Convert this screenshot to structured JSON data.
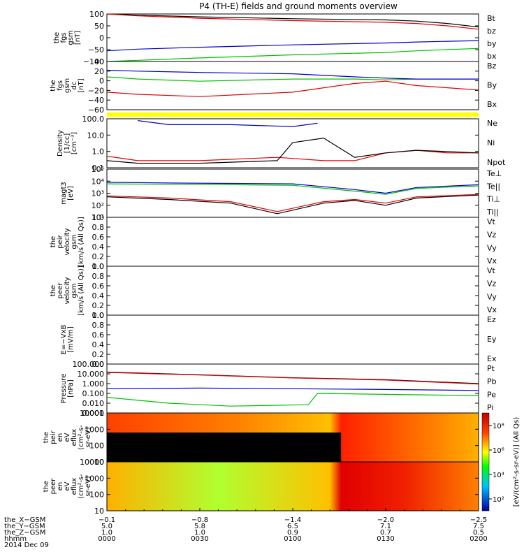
{
  "title": "P4 (TH-E) fields and ground moments overview",
  "date_label": "2014 Dec 09",
  "colors": {
    "black": "#000000",
    "red": "#e00000",
    "green": "#00c000",
    "blue": "#0000d0",
    "yellow": "#ffff00"
  },
  "panels": [
    {
      "id": "fgs-gsm",
      "ylabel": [
        "the",
        "fgs",
        "gsm",
        "[nT]"
      ],
      "yticks": [
        "100",
        "50",
        "0",
        "−50",
        "−100"
      ],
      "legend": [
        {
          "t": "Bt",
          "c": "black"
        },
        {
          "t": "bz",
          "c": "red"
        },
        {
          "t": "by",
          "c": "green"
        },
        {
          "t": "bx",
          "c": "blue"
        }
      ]
    },
    {
      "id": "fgs-gsm-dc",
      "ylabel": [
        "the",
        "fgs",
        "gsm",
        "dc",
        "[nT]"
      ],
      "yticks": [
        "40",
        "20",
        "0",
        "−20",
        "−40",
        "−60"
      ],
      "legend": [
        {
          "t": "Bz",
          "c": "red"
        },
        {
          "t": "By",
          "c": "green"
        },
        {
          "t": "Bx",
          "c": "blue"
        }
      ]
    },
    {
      "id": "density",
      "ylabel": [
        "Density",
        "[1/cc]",
        "[cm⁻³]"
      ],
      "yticks": [
        "100.0",
        "10.0",
        "1.0",
        "0.1"
      ],
      "legend": [
        {
          "t": "Ne",
          "c": "red"
        },
        {
          "t": "Ni",
          "c": "black"
        },
        {
          "t": "Npot",
          "c": "blue"
        }
      ]
    },
    {
      "id": "temperature",
      "ylabel": [
        "magt3",
        "[eV]"
      ],
      "yticks": [
        "10⁵",
        "10⁴",
        "10³",
        "10²",
        "10¹"
      ],
      "legend": [
        {
          "t": "Te⊥",
          "c": "red"
        },
        {
          "t": "Te||",
          "c": "black"
        },
        {
          "t": "Ti⊥",
          "c": "blue"
        },
        {
          "t": "Ti||",
          "c": "green"
        }
      ]
    },
    {
      "id": "peir-velocity",
      "ylabel": [
        "the",
        "peir",
        "velocity",
        "gsm",
        "[km/s (All Qs)]"
      ],
      "yticks": [
        "1.0",
        "0.8",
        "0.6",
        "0.4",
        "0.2",
        "0.0"
      ],
      "legend": [
        {
          "t": "Vt",
          "c": "black"
        },
        {
          "t": "Vz",
          "c": "red"
        },
        {
          "t": "Vy",
          "c": "green"
        },
        {
          "t": "Vx",
          "c": "blue"
        }
      ]
    },
    {
      "id": "peer-velocity",
      "ylabel": [
        "the",
        "peer",
        "velocity",
        "gsm",
        "[km/s (All Qs)]"
      ],
      "yticks": [
        "1.0",
        "0.8",
        "0.6",
        "0.4",
        "0.2",
        "0.0"
      ],
      "legend": [
        {
          "t": "Vt",
          "c": "black"
        },
        {
          "t": "Vz",
          "c": "red"
        },
        {
          "t": "Vy",
          "c": "green"
        },
        {
          "t": "Vx",
          "c": "blue"
        }
      ]
    },
    {
      "id": "e-field",
      "ylabel": [
        "E=−VxB",
        "[mV/m]"
      ],
      "yticks": [
        "1.0",
        "0.8",
        "0.6",
        "0.4",
        "0.2",
        "0.0"
      ],
      "legend": [
        {
          "t": "Ez",
          "c": "red"
        },
        {
          "t": "Ey",
          "c": "green"
        },
        {
          "t": "Ex",
          "c": "blue"
        }
      ]
    },
    {
      "id": "pressure",
      "ylabel": [
        "Pressure",
        "[nPa]"
      ],
      "yticks": [
        "100.000",
        "10.000",
        "1.000",
        "0.100",
        "0.010",
        "0.001"
      ],
      "legend": [
        {
          "t": "Pt",
          "c": "black"
        },
        {
          "t": "Pb",
          "c": "red"
        },
        {
          "t": "Pe",
          "c": "green"
        },
        {
          "t": "Pi",
          "c": "blue"
        }
      ]
    },
    {
      "id": "peir-spectrogram",
      "ylabel": [
        "the",
        "peir",
        "en",
        "eV",
        "eflux",
        "(cm²-s-",
        "sr-eV)"
      ],
      "yticks": [
        "10000",
        "1000",
        "100",
        "10"
      ],
      "legend": []
    },
    {
      "id": "peer-spectrogram",
      "ylabel": [
        "the",
        "peer",
        "en",
        "eV",
        "eflux",
        "(cm²-s-",
        "sr-eV)"
      ],
      "yticks": [
        "10000",
        "1000",
        "100",
        "10"
      ],
      "legend": []
    }
  ],
  "colorbar": {
    "label": "[eV/(cm²-s-sr-eV)] (All Qs)",
    "ticks": [
      "10⁸",
      "10⁶",
      "10⁴",
      "10²"
    ]
  },
  "xaxis": {
    "row_labels": [
      "the_X−GSM",
      "the_Y−GSM",
      "the_Z−GSM",
      "hhmm"
    ],
    "columns": [
      [
        "−0.1",
        "5.0",
        "1.0",
        "0000"
      ],
      [
        "−0.8",
        "5.8",
        "1.0",
        "0030"
      ],
      [
        "−1.4",
        "6.5",
        "0.9",
        "0100"
      ],
      [
        "−2.0",
        "7.1",
        "0.7",
        "0130"
      ],
      [
        "−2.5",
        "7.5",
        "0.5",
        "0200"
      ]
    ]
  },
  "chart_data": [
    {
      "type": "line",
      "title": "the fgs gsm [nT]",
      "x_range_hhmm": [
        "0000",
        "0200"
      ],
      "ylim": [
        -100,
        100
      ],
      "series": [
        {
          "name": "Bt",
          "x": [
            0,
            10,
            30,
            60,
            90,
            100,
            110,
            120
          ],
          "values": [
            100,
            95,
            88,
            80,
            75,
            70,
            60,
            45
          ]
        },
        {
          "name": "bz",
          "x": [
            0,
            10,
            30,
            60,
            90,
            100,
            110,
            120
          ],
          "values": [
            100,
            92,
            82,
            72,
            65,
            60,
            50,
            36
          ]
        },
        {
          "name": "by",
          "x": [
            0,
            10,
            30,
            60,
            90,
            100,
            110,
            120
          ],
          "values": [
            -100,
            -95,
            -85,
            -72,
            -62,
            -55,
            -50,
            -45
          ]
        },
        {
          "name": "bx",
          "x": [
            0,
            10,
            30,
            60,
            90,
            100,
            110,
            120
          ],
          "values": [
            -55,
            -48,
            -40,
            -30,
            -22,
            -18,
            -15,
            -12
          ]
        }
      ]
    },
    {
      "type": "line",
      "title": "the fgs gsm dc [nT]",
      "ylim": [
        -70,
        40
      ],
      "series": [
        {
          "name": "Bz",
          "x": [
            0,
            10,
            30,
            60,
            80,
            90,
            100,
            110,
            120
          ],
          "values": [
            -30,
            -35,
            -40,
            -30,
            -10,
            -5,
            -15,
            -20,
            -25
          ]
        },
        {
          "name": "By",
          "x": [
            0,
            10,
            30,
            60,
            80,
            90,
            100,
            110,
            120
          ],
          "values": [
            5,
            0,
            -5,
            0,
            0,
            -2,
            0,
            0,
            0
          ]
        },
        {
          "name": "Bx",
          "x": [
            0,
            10,
            30,
            60,
            80,
            90,
            100,
            110,
            120
          ],
          "values": [
            20,
            18,
            15,
            12,
            5,
            2,
            0,
            0,
            0
          ]
        }
      ]
    },
    {
      "type": "line",
      "title": "Density [1/cc]",
      "ylim": [
        0.1,
        200
      ],
      "yscale": "log",
      "series": [
        {
          "name": "Ne",
          "x": [
            0,
            10,
            30,
            55,
            70,
            80,
            90,
            100,
            110,
            120
          ],
          "values": [
            0.6,
            0.3,
            0.3,
            0.5,
            0.3,
            0.3,
            1.0,
            1.5,
            1.0,
            1.0
          ]
        },
        {
          "name": "Ni",
          "x": [
            0,
            10,
            30,
            55,
            60,
            70,
            80,
            90,
            100,
            120
          ],
          "values": [
            0.3,
            0.2,
            0.2,
            0.3,
            5,
            10,
            0.5,
            1.0,
            1.5,
            1.0
          ]
        },
        {
          "name": "Npot",
          "x": [
            10,
            20,
            40,
            60,
            68
          ],
          "values": [
            150,
            80,
            80,
            60,
            100
          ]
        }
      ]
    },
    {
      "type": "line",
      "title": "magt3 [eV]",
      "ylim": [
        10,
        100000
      ],
      "yscale": "log",
      "series": [
        {
          "name": "Te⊥",
          "x": [
            0,
            20,
            40,
            55,
            70,
            80,
            90,
            100,
            120
          ],
          "values": [
            600,
            400,
            200,
            30,
            200,
            300,
            150,
            500,
            800
          ]
        },
        {
          "name": "Te||",
          "x": [
            0,
            20,
            40,
            55,
            70,
            80,
            90,
            100,
            120
          ],
          "values": [
            500,
            300,
            150,
            20,
            150,
            250,
            100,
            400,
            700
          ]
        },
        {
          "name": "Ti⊥",
          "x": [
            0,
            20,
            40,
            60,
            80,
            90,
            100,
            120
          ],
          "values": [
            8000,
            7000,
            6500,
            6000,
            2000,
            1000,
            3000,
            5000
          ]
        },
        {
          "name": "Ti||",
          "x": [
            0,
            20,
            40,
            60,
            80,
            90,
            100,
            120
          ],
          "values": [
            6000,
            5500,
            5000,
            4500,
            1500,
            800,
            2500,
            4000
          ]
        }
      ]
    },
    {
      "type": "line",
      "title": "the peir velocity gsm [km/s (All Qs)]",
      "ylim": [
        0,
        1
      ],
      "series": []
    },
    {
      "type": "line",
      "title": "the peer velocity gsm [km/s (All Qs)]",
      "ylim": [
        0,
        1
      ],
      "series": []
    },
    {
      "type": "line",
      "title": "E=−VxB [mV/m]",
      "ylim": [
        0,
        1
      ],
      "series": []
    },
    {
      "type": "line",
      "title": "Pressure [nPa]",
      "ylim": [
        0.001,
        100
      ],
      "yscale": "log",
      "series": [
        {
          "name": "Pt",
          "x": [
            0,
            30,
            60,
            90,
            120
          ],
          "values": [
            15,
            8,
            4,
            2.5,
            1
          ]
        },
        {
          "name": "Pb",
          "x": [
            0,
            30,
            60,
            90,
            120
          ],
          "values": [
            14,
            7.5,
            3.8,
            2.3,
            0.9
          ]
        },
        {
          "name": "Pe",
          "x": [
            0,
            20,
            40,
            65,
            68,
            90,
            120
          ],
          "values": [
            0.04,
            0.01,
            0.005,
            0.007,
            0.1,
            0.08,
            0.06
          ]
        },
        {
          "name": "Pi",
          "x": [
            0,
            30,
            60,
            90,
            120
          ],
          "values": [
            0.3,
            0.35,
            0.3,
            0.25,
            0.2
          ]
        }
      ]
    },
    {
      "type": "heatmap",
      "title": "the peir en eflux",
      "yscale": "log",
      "ylim": [
        10,
        10000
      ],
      "x_range_hhmm": [
        "0000",
        "0200"
      ]
    },
    {
      "type": "heatmap",
      "title": "the peer en eflux",
      "yscale": "log",
      "ylim": [
        10,
        10000
      ],
      "x_range_hhmm": [
        "0000",
        "0200"
      ]
    }
  ]
}
